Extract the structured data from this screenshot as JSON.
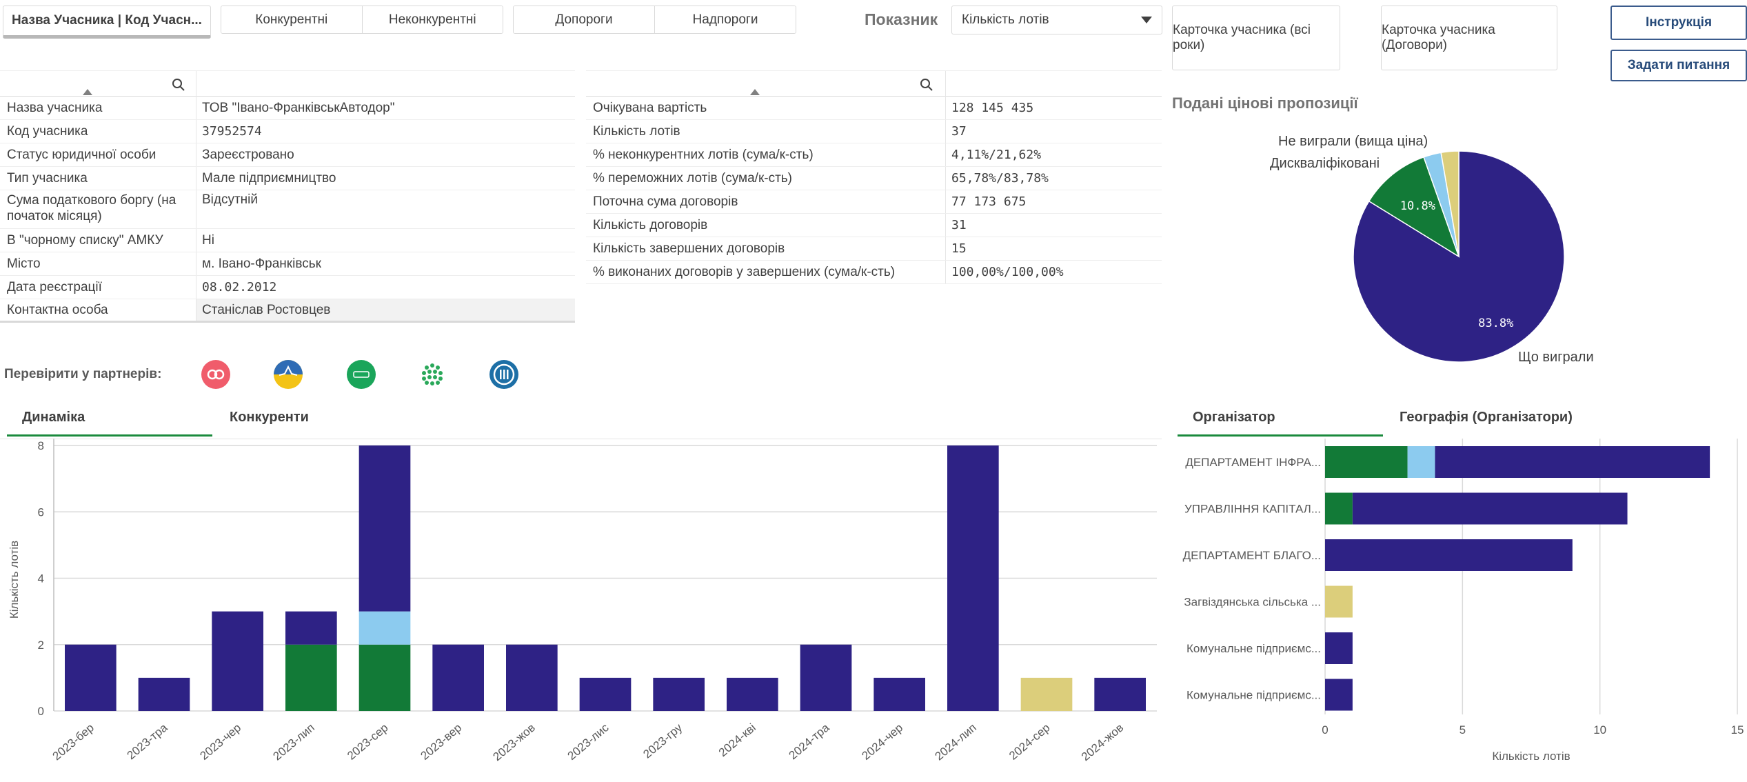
{
  "filters": {
    "participant_filter": "Назва Учасника | Код Учасн...",
    "competition": [
      "Конкурентні",
      "Неконкурентні"
    ],
    "thresholds": [
      "Допороги",
      "Надпороги"
    ],
    "indicator_label": "Показник",
    "indicator_value": "Кількість лотів"
  },
  "buttons": {
    "card_all_years": "Карточка учасника (всі роки)",
    "card_contracts": "Карточка учасника (Договори)",
    "instruction": "Інструкція",
    "ask_question": "Задати питання"
  },
  "participant_table": {
    "rows": [
      {
        "label": "Назва учасника",
        "value": "ТОВ \"Івано-ФранківськАвтодор\""
      },
      {
        "label": "Код учасника",
        "value": "37952574"
      },
      {
        "label": "Статус юридичної особи",
        "value": "Зареєстровано"
      },
      {
        "label": "Тип учасника",
        "value": "Мале підприємництво"
      },
      {
        "label": "Сума податкового боргу (на початок місяця)",
        "value": "Відсутній"
      },
      {
        "label": "В \"чорному списку\" АМКУ",
        "value": "Ні"
      },
      {
        "label": "Місто",
        "value": "м. Івано-Франківськ"
      },
      {
        "label": "Дата реєстрації",
        "value": "08.02.2012"
      },
      {
        "label": "Контактна особа",
        "value": "Станіслав Ростовцев"
      }
    ]
  },
  "stats_table": {
    "rows": [
      {
        "label": "Очікувана вартість",
        "value": "128 145 435"
      },
      {
        "label": "Кількість лотів",
        "value": "37"
      },
      {
        "label": "% неконкурентних лотів (сума/к-сть)",
        "value": "4,11%/21,62%"
      },
      {
        "label": "% переможних лотів (сума/к-сть)",
        "value": "65,78%/83,78%"
      },
      {
        "label": "Поточна сума договорів",
        "value": "77 173 675"
      },
      {
        "label": "Кількість договорів",
        "value": "31"
      },
      {
        "label": "Кількість завершених договорів",
        "value": "15"
      },
      {
        "label": "% виконаних договорів у завершених (сума/к-сть)",
        "value": "100,00%/100,00%"
      }
    ]
  },
  "partners": {
    "label": "Перевірити у партнерів:",
    "icons": [
      "opendatabot-icon",
      "ukraine-map-icon",
      "youcontrol-icon",
      "dots-grid-icon",
      "court-icon"
    ]
  },
  "colors": {
    "won": "#2e2285",
    "disqualified": "#127a37",
    "lost_higher_price": "#8ccbef",
    "other": "#dcce7b"
  },
  "pie": {
    "title": "Подані цінові пропозиції",
    "labels": {
      "lost": "Не виграли (вища ціна)",
      "disq": "Дискваліфіковані",
      "won": "Що виграли"
    },
    "pct_won": "83.8%",
    "pct_disq": "10.8%"
  },
  "chart_tabs": {
    "dynamics": "Динаміка",
    "competitors": "Конкуренти"
  },
  "org_tabs": {
    "organizer": "Організатор",
    "geography": "Географія (Організатори)"
  },
  "chart_data": [
    {
      "type": "pie",
      "title": "Подані цінові пропозиції",
      "categories": [
        "Що виграли",
        "Дискваліфіковані",
        "Не виграли (вища ціна)",
        ""
      ],
      "values": [
        31,
        4,
        1,
        1
      ],
      "data_labels": [
        "83.8%",
        "10.8%",
        "",
        ""
      ]
    },
    {
      "type": "bar",
      "stacked": true,
      "ylabel": "Кількість лотів",
      "ylim": [
        0,
        8
      ],
      "yticks": [
        "0",
        "2",
        "4",
        "6",
        "8"
      ],
      "categories": [
        "2023-бер",
        "2023-тра",
        "2023-чер",
        "2023-лип",
        "2023-сер",
        "2023-вер",
        "2023-жов",
        "2023-лис",
        "2023-гру",
        "2024-кві",
        "2024-тра",
        "2024-чер",
        "2024-лип",
        "2024-сер",
        "2024-жов"
      ],
      "series": [
        {
          "color": "#127a37",
          "values": [
            0,
            0,
            0,
            2,
            2,
            0,
            0,
            0,
            0,
            0,
            0,
            0,
            0,
            0,
            0
          ]
        },
        {
          "color": "#8ccbef",
          "values": [
            0,
            0,
            0,
            0,
            1,
            0,
            0,
            0,
            0,
            0,
            0,
            0,
            0,
            0,
            0
          ]
        },
        {
          "color": "#2e2285",
          "values": [
            2,
            1,
            3,
            1,
            5,
            2,
            2,
            1,
            1,
            1,
            2,
            1,
            8,
            0,
            1
          ]
        },
        {
          "color": "#dcce7b",
          "values": [
            0,
            0,
            0,
            0,
            0,
            0,
            0,
            0,
            0,
            0,
            0,
            0,
            0,
            1,
            0
          ]
        }
      ]
    },
    {
      "type": "bar",
      "orientation": "horizontal",
      "stacked": true,
      "xlabel": "Кількість лотів",
      "xlim": [
        0,
        15
      ],
      "xticks": [
        "0",
        "5",
        "10",
        "15"
      ],
      "categories": [
        "ДЕПАРТАМЕНТ ІНФРА...",
        "УПРАВЛІННЯ КАПІТАЛ...",
        "ДЕПАРТАМЕНТ БЛАГО...",
        "Загвіздянська сільська ...",
        "Комунальне підприємс...",
        "Комунальне підприємс..."
      ],
      "series": [
        {
          "color": "#127a37",
          "values": [
            3,
            1,
            0,
            0,
            0,
            0
          ]
        },
        {
          "color": "#8ccbef",
          "values": [
            1,
            0,
            0,
            0,
            0,
            0
          ]
        },
        {
          "color": "#2e2285",
          "values": [
            10,
            10,
            9,
            0,
            1,
            1
          ]
        },
        {
          "color": "#dcce7b",
          "values": [
            0,
            0,
            0,
            1,
            0,
            0
          ]
        }
      ]
    }
  ]
}
